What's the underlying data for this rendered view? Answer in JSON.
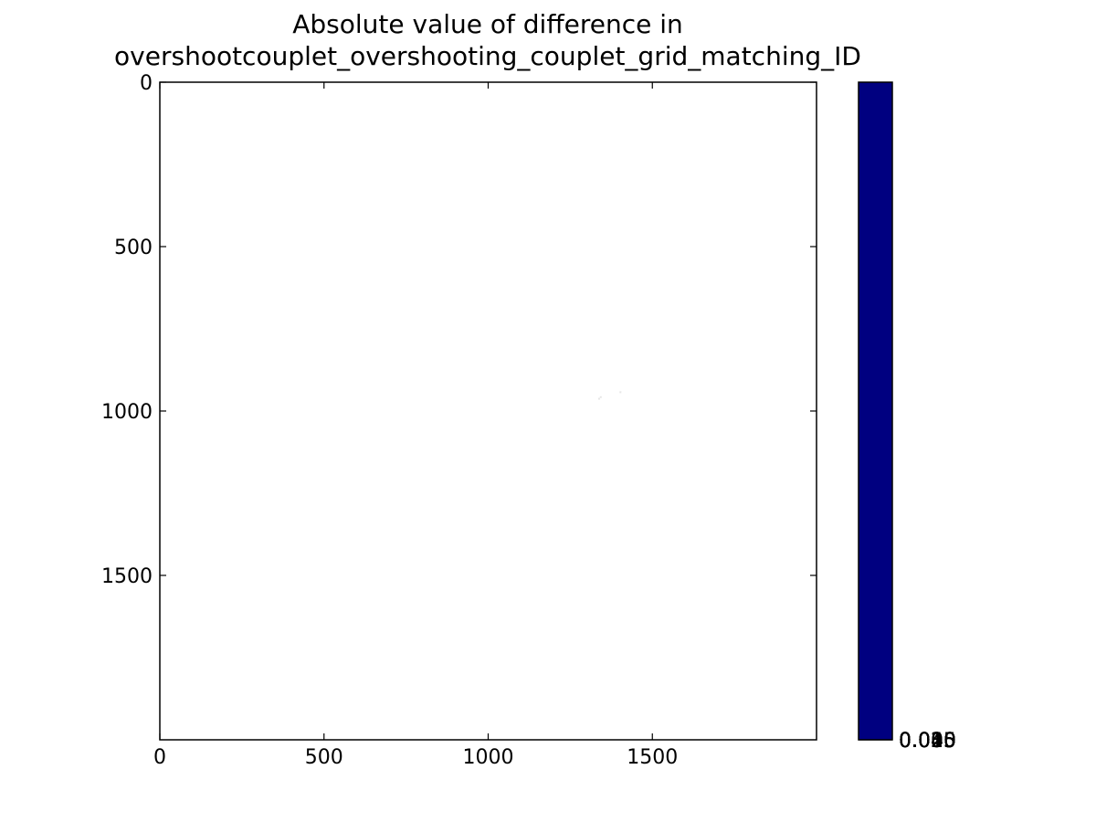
{
  "chart_data": {
    "type": "heatmap",
    "title": [
      "Absolute value of difference in",
      "overshootcouplet_overshooting_couplet_grid_matching_ID"
    ],
    "xlabel": "",
    "ylabel": "",
    "xlim": [
      0,
      2000
    ],
    "ylim": [
      2000,
      0
    ],
    "x_ticks": [
      0,
      500,
      1000,
      1500
    ],
    "y_ticks": [
      0,
      500,
      1000,
      1500
    ],
    "x_tick_labels": [
      "0",
      "500",
      "1000",
      "1500"
    ],
    "y_tick_labels": [
      "0",
      "500",
      "1000",
      "1500"
    ],
    "background_color": "#ffffff",
    "values_note": "",
    "specks": [
      {
        "x": 1335,
        "y": 960,
        "value": 0
      },
      {
        "x": 1340,
        "y": 955,
        "value": 0
      },
      {
        "x": 1400,
        "y": 940,
        "value": 0
      }
    ],
    "colorbar": {
      "color": "#000080",
      "overlapping_tick_labels": [
        "0.000",
        "0.005",
        "0.010",
        "0.015",
        "0.020",
        "0.025",
        "0.030",
        "0.035",
        "0.040",
        "0.045"
      ]
    }
  }
}
